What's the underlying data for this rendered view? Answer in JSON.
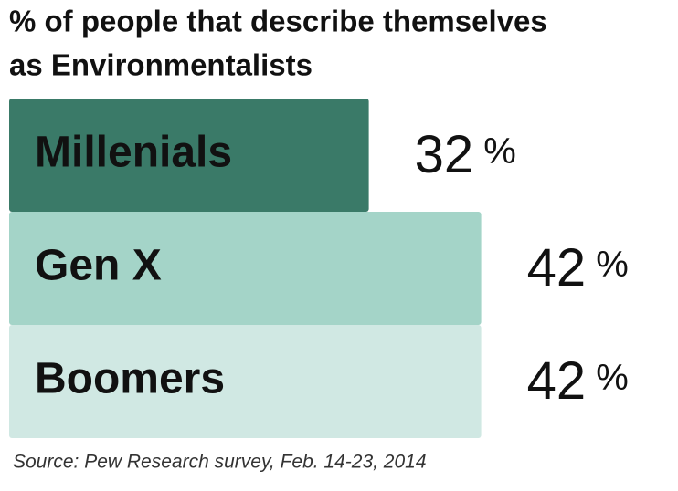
{
  "chart_data": {
    "type": "bar",
    "orientation": "horizontal",
    "title": [
      "% of people that describe themselves",
      "as Environmentalists"
    ],
    "categories": [
      "Millenials",
      "Gen X",
      "Boomers"
    ],
    "values": [
      32,
      42,
      42
    ],
    "value_labels": [
      "32 %",
      "42 %",
      "42 %"
    ],
    "colors": [
      "#3a7a68",
      "#a4d4c8",
      "#d0e8e3"
    ],
    "source": "Source: Pew Research survey, Feb. 14-23, 2014"
  }
}
